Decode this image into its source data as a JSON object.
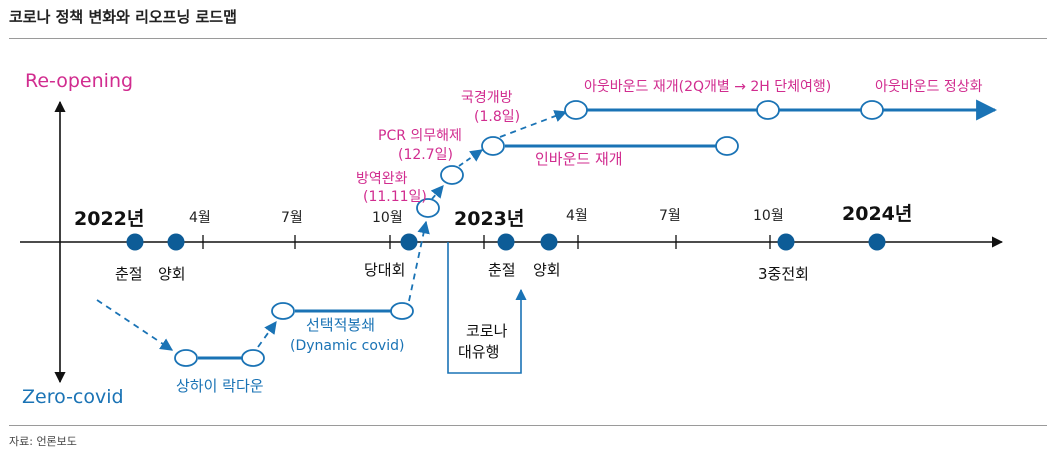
{
  "title": "코로나 정책 변화와 리오프닝 로드맵",
  "source": "자료: 언론보도",
  "colors": {
    "blue": "#1a73b5",
    "dark_blue": "#0d5c97",
    "pink": "#d12c8f",
    "teal": "#1a73b5",
    "text": "#222222"
  },
  "axis": {
    "top_label": "Re-opening",
    "bottom_label": "Zero-covid"
  },
  "timeline": {
    "years": [
      "2022년",
      "2023년",
      "2024년"
    ],
    "months": [
      "4월",
      "7월",
      "10월",
      "4월",
      "7월",
      "10월"
    ],
    "events_below": [
      "춘절",
      "양회",
      "당대회",
      "춘절",
      "양회",
      "3중전회"
    ]
  },
  "zero_covid": {
    "lockdown": "상하이 락다운",
    "dynamic": [
      "선택적봉쇄",
      "(Dynamic covid)"
    ],
    "outbreak": [
      "코로나",
      "대유행"
    ]
  },
  "reopening": {
    "quarantine": [
      "방역완화",
      "(11.11일)"
    ],
    "pcr": [
      "PCR 의무해제",
      "(12.7일)"
    ],
    "border": [
      "국경개방",
      "(1.8일)"
    ],
    "inbound": "인바운드 재개",
    "outbound": "아웃바운드 재개(2Q개별 → 2H 단체여행)",
    "normal": "아웃바운드 정상화"
  }
}
